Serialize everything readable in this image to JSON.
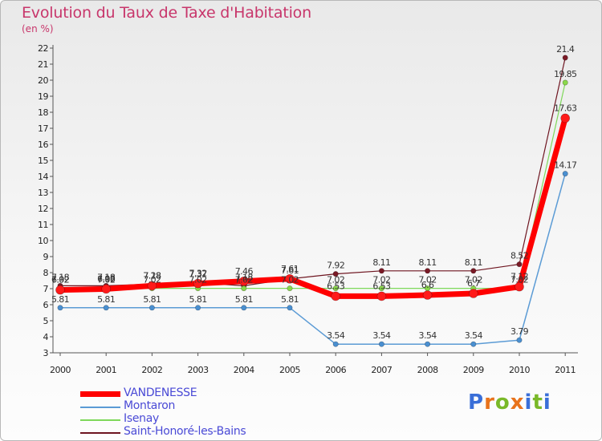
{
  "header": {
    "title": "Evolution du Taux de Taxe d'Habitation",
    "unit": "(en %)"
  },
  "logo": {
    "text": "Proxiti",
    "letter_colors": [
      "#3a6fd8",
      "#e8731c",
      "#7ab929",
      "#e8731c",
      "#3a6fd8",
      "#7ab929",
      "#3a6fd8"
    ]
  },
  "chart_data": {
    "type": "line",
    "title": "Evolution du Taux de Taxe d'Habitation",
    "ylabel": "(en %)",
    "xlabel": "",
    "x": [
      "2000",
      "2001",
      "2002",
      "2003",
      "2004",
      "2005",
      "2006",
      "2007",
      "2008",
      "2009",
      "2010",
      "2011"
    ],
    "ylim": [
      3,
      22
    ],
    "yticks": [
      3,
      4,
      5,
      6,
      7,
      8,
      9,
      10,
      11,
      12,
      13,
      14,
      15,
      16,
      17,
      18,
      19,
      20,
      21,
      22
    ],
    "grid": false,
    "legend_position": "bottom-left",
    "series": [
      {
        "name": "Saint-Honoré-les-Bains",
        "color": "#6e1520",
        "marker_color": "#7a1a26",
        "width": 1.2,
        "values": [
          7.18,
          7.18,
          7.28,
          7.37,
          7.18,
          7.61,
          7.92,
          8.11,
          8.11,
          8.11,
          8.52,
          21.4
        ],
        "labels": [
          "7.18",
          "7.18",
          "7.28",
          "7.37",
          "7.18",
          "7.61",
          "7.92",
          "8.11",
          "8.11",
          "8.11",
          "8.52",
          "21.4"
        ]
      },
      {
        "name": "Isenay",
        "color": "#7ed85a",
        "marker_color": "#8ad84a",
        "width": 1.2,
        "values": [
          7.02,
          7.02,
          7.02,
          7.02,
          7.02,
          7.02,
          7.02,
          7.02,
          7.02,
          7.02,
          7.02,
          19.85
        ],
        "labels": [
          "7.02",
          "7.02",
          "7.02",
          "7.02",
          "7.02",
          "7.02",
          "7.02",
          "7.02",
          "7.02",
          "7.02",
          "7.02",
          "19.85"
        ]
      },
      {
        "name": "Montaron",
        "color": "#5b9bd5",
        "marker_color": "#4a8fd0",
        "width": 1.5,
        "values": [
          5.81,
          5.81,
          5.81,
          5.81,
          5.81,
          5.81,
          3.54,
          3.54,
          3.54,
          3.54,
          3.79,
          14.17
        ],
        "labels": [
          "5.81",
          "5.81",
          "5.81",
          "5.81",
          "5.81",
          "5.81",
          "3.54",
          "3.54",
          "3.54",
          "3.54",
          "3.79",
          "14.17"
        ]
      },
      {
        "name": "VANDENESSE",
        "color": "#ff0000",
        "marker_color": "#ff1a1a",
        "width": 7,
        "values": [
          6.92,
          6.98,
          7.18,
          7.32,
          7.46,
          7.61,
          6.53,
          6.53,
          6.6,
          6.7,
          7.12,
          17.63
        ],
        "labels": [
          "6.92",
          "6.98",
          "7.18",
          "7.32",
          "7.46",
          "7.61",
          "6.53",
          "6.53",
          "6.6",
          "6.7",
          "7.12",
          "17.63"
        ]
      }
    ],
    "legend_order": [
      "VANDENESSE",
      "Montaron",
      "Isenay",
      "Saint-Honoré-les-Bains"
    ]
  }
}
